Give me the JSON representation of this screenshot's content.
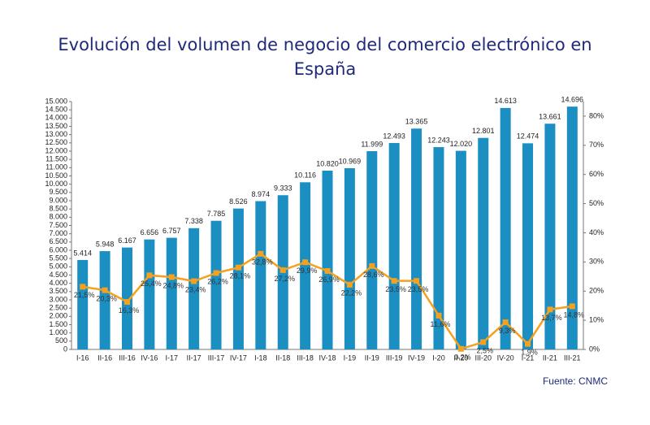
{
  "chart_data": {
    "type": "bar_line",
    "title": "Evolución del volumen de negocio del comercio electrónico en España",
    "source": "Fuente: CNMC",
    "categories": [
      "I-16",
      "II-16",
      "III-16",
      "IV-16",
      "I-17",
      "II-17",
      "III-17",
      "IV-17",
      "I-18",
      "II-18",
      "III-18",
      "IV-18",
      "I-19",
      "II-19",
      "III-19",
      "IV-19",
      "I-20",
      "II-20",
      "III-20",
      "IV-20",
      "I-21",
      "II-21",
      "III-21"
    ],
    "series": [
      {
        "type": "bar",
        "color": "#1b8ec2",
        "values": [
          5414,
          5948,
          6167,
          6656,
          6757,
          7338,
          7785,
          8526,
          8974,
          9333,
          10116,
          10820,
          10969,
          11999,
          12493,
          13365,
          12243,
          12020,
          12801,
          14613,
          12474,
          13661,
          14696
        ],
        "value_labels": [
          "5.414",
          "5.948",
          "6.167",
          "6.656",
          "6.757",
          "7.338",
          "7.785",
          "8.526",
          "8.974",
          "9.333",
          "10.116",
          "10.820",
          "10.969",
          "11.999",
          "12.493",
          "13.365",
          "12.243",
          "12.020",
          "12.801",
          "14.613",
          "12.474",
          "13.661",
          "14.696"
        ]
      },
      {
        "type": "line",
        "axis": "y2",
        "color": "#f5a01e",
        "values": [
          21.5,
          20.3,
          16.3,
          25.4,
          24.8,
          23.4,
          26.2,
          28.1,
          32.8,
          27.2,
          29.9,
          26.9,
          22.2,
          28.6,
          23.5,
          23.5,
          11.6,
          0.2,
          2.5,
          9.3,
          1.9,
          13.7,
          14.8
        ],
        "value_labels": [
          "21,5%",
          "20,3%",
          "16,3%",
          "25,4%",
          "24,8%",
          "23,4%",
          "26,2%",
          "28,1%",
          "32,8%",
          "27,2%",
          "29,9%",
          "26,9%",
          "22,2%",
          "28,6%",
          "23,5%",
          "23,5%",
          "11,6%",
          "0,2%",
          "2,5%",
          "9,3%",
          "1,9%",
          "13,7%",
          "14,8%"
        ]
      }
    ],
    "ylim": [
      0,
      15000
    ],
    "yticks": [
      0,
      500,
      {
        "value": 1000,
        "label": "1.000"
      },
      {
        "value": 1500,
        "label": "1.500"
      },
      {
        "value": 2000,
        "label": "2.000"
      },
      {
        "value": 2500,
        "label": "2.500"
      },
      {
        "value": 3000,
        "label": "3.000"
      },
      {
        "value": 3500,
        "label": "3.500"
      },
      {
        "value": 4000,
        "label": "4.000"
      },
      {
        "value": 4500,
        "label": "4.500"
      },
      {
        "value": 5000,
        "label": "5.000"
      },
      {
        "value": 5500,
        "label": "5.500"
      },
      {
        "value": 6000,
        "label": "6.000"
      },
      {
        "value": 6500,
        "label": "6.500"
      },
      {
        "value": 7000,
        "label": "7.000"
      },
      {
        "value": 7500,
        "label": "7.500"
      },
      {
        "value": 8000,
        "label": "8.000"
      },
      {
        "value": 8500,
        "label": "8.500"
      },
      {
        "value": 9000,
        "label": "9.000"
      },
      {
        "value": 9500,
        "label": "9.500"
      },
      {
        "value": 10000,
        "label": "10.000"
      },
      {
        "value": 10500,
        "label": "10.500"
      },
      {
        "value": 11000,
        "label": "11.000"
      },
      {
        "value": 11500,
        "label": "11.500"
      },
      {
        "value": 12000,
        "label": "12.000"
      },
      {
        "value": 12500,
        "label": "12.500"
      },
      {
        "value": 13000,
        "label": "13.000"
      },
      {
        "value": 13500,
        "label": "13.500"
      },
      {
        "value": 14000,
        "label": "14.000"
      },
      {
        "value": 14500,
        "label": "14.500"
      },
      {
        "value": 15000,
        "label": "15.000"
      }
    ],
    "y2lim": [
      0,
      85
    ],
    "y2ticks": [
      {
        "value": 0,
        "label": "0%"
      },
      {
        "value": 10,
        "label": "10%"
      },
      {
        "value": 20,
        "label": "20%"
      },
      {
        "value": 30,
        "label": "30%"
      },
      {
        "value": 40,
        "label": "40%"
      },
      {
        "value": 50,
        "label": "50%"
      },
      {
        "value": 60,
        "label": "60%"
      },
      {
        "value": 70,
        "label": "70%"
      },
      {
        "value": 80,
        "label": "80%"
      }
    ]
  }
}
